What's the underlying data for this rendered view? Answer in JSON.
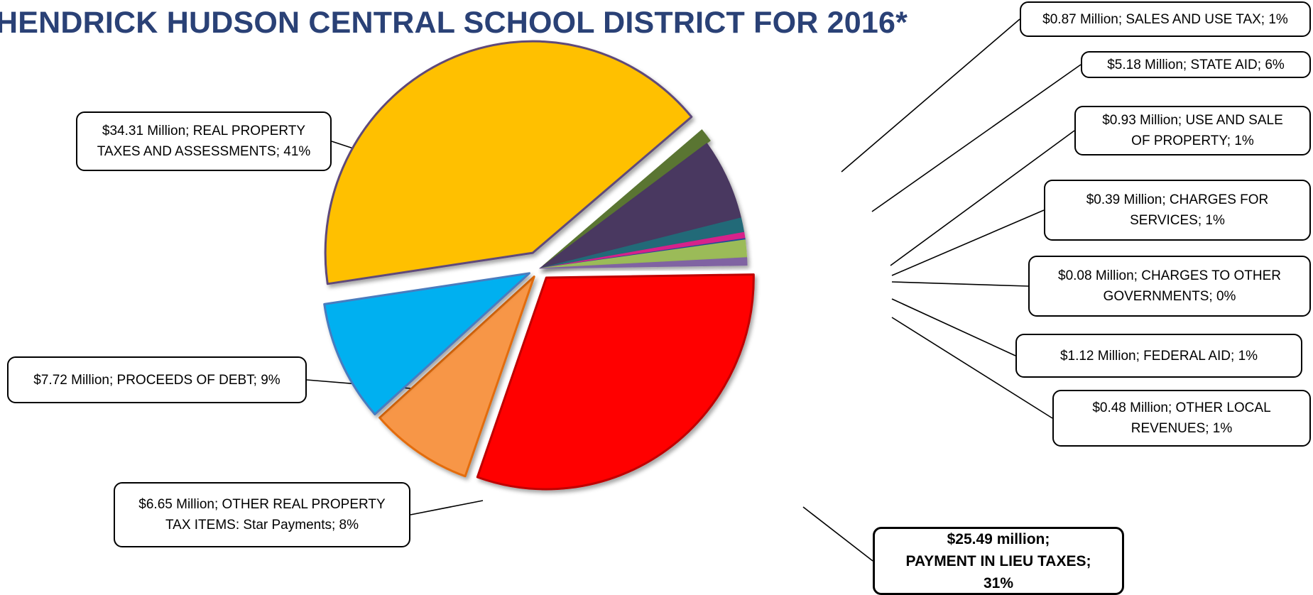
{
  "title": "HENDRICK HUDSON CENTRAL SCHOOL DISTRICT FOR 2016*",
  "chart_data": {
    "type": "pie",
    "title": "HENDRICK HUDSON CENTRAL SCHOOL DISTRICT FOR 2016*",
    "unit": "Million",
    "slices": [
      {
        "key": "sales_tax",
        "name": "SALES AND USE TAX",
        "value": 0.87,
        "percent": 1,
        "label": "$0.87 Million; SALES AND USE TAX; 1%",
        "color": "#5a7531"
      },
      {
        "key": "state_aid",
        "name": "STATE AID",
        "value": 5.18,
        "percent": 6,
        "label": "$5.18 Million; STATE AID; 6%",
        "color": "#4a3760"
      },
      {
        "key": "use_sale_property",
        "name": "USE AND SALE OF PROPERTY",
        "value": 0.93,
        "percent": 1,
        "label": "$0.93 Million; USE AND SALE OF PROPERTY; 1%",
        "color": "#236a78"
      },
      {
        "key": "charges_services",
        "name": "CHARGES FOR SERVICES",
        "value": 0.39,
        "percent": 1,
        "label": "$0.39 Million; CHARGES FOR SERVICES; 1%",
        "color": "#d6208b"
      },
      {
        "key": "charges_other_govts",
        "name": "CHARGES TO OTHER GOVERNMENTS",
        "value": 0.08,
        "percent": 0,
        "label": "$0.08 Million; CHARGES TO OTHER GOVERNMENTS; 0%",
        "color": "#1f4d9a"
      },
      {
        "key": "federal_aid",
        "name": "FEDERAL AID",
        "value": 1.12,
        "percent": 1,
        "label": "$1.12 Million; FEDERAL AID; 1%",
        "color": "#9bbb59"
      },
      {
        "key": "other_local",
        "name": "OTHER LOCAL REVENUES",
        "value": 0.48,
        "percent": 1,
        "label": "$0.48 Million; OTHER LOCAL REVENUES; 1%",
        "color": "#8064a2"
      },
      {
        "key": "pilot",
        "name": "PAYMENT IN LIEU TAXES",
        "value": 25.49,
        "percent": 31,
        "label": "$25.49 million; PAYMENT IN LIEU TAXES; 31%",
        "color": "#ff0000"
      },
      {
        "key": "star",
        "name": "OTHER REAL PROPERTY TAX ITEMS: Star Payments",
        "value": 6.65,
        "percent": 8,
        "label": "$6.65 Million; OTHER REAL PROPERTY TAX ITEMS:  Star Payments; 8%",
        "color": "#f79646"
      },
      {
        "key": "debt",
        "name": "PROCEEDS OF DEBT",
        "value": 7.72,
        "percent": 9,
        "label": "$7.72 Million; PROCEEDS OF DEBT; 9%",
        "color": "#00b0f0"
      },
      {
        "key": "real_property",
        "name": "REAL PROPERTY TAXES AND ASSESSMENTS",
        "value": 34.31,
        "percent": 41,
        "label": "$34.31 Million; REAL PROPERTY TAXES AND ASSESSMENTS; 41%",
        "color": "#ffc000"
      }
    ]
  },
  "callouts": {
    "sales_tax": [
      "$0.87 Million; SALES AND USE TAX; 1%"
    ],
    "state_aid": [
      "$5.18 Million; STATE AID; 6%"
    ],
    "use_sale_property": [
      "$0.93 Million; USE AND SALE",
      "OF PROPERTY; 1%"
    ],
    "charges_services": [
      "$0.39 Million; CHARGES FOR",
      "SERVICES; 1%"
    ],
    "charges_other_govts": [
      "$0.08 Million; CHARGES TO OTHER",
      "GOVERNMENTS; 0%"
    ],
    "federal_aid": [
      "$1.12 Million; FEDERAL AID; 1%"
    ],
    "other_local": [
      "$0.48 Million; OTHER LOCAL",
      "REVENUES; 1%"
    ],
    "pilot": [
      "$25.49 million;",
      "PAYMENT IN LIEU TAXES;",
      "31%"
    ],
    "star": [
      "$6.65 Million; OTHER REAL PROPERTY",
      "TAX ITEMS:  Star Payments; 8%"
    ],
    "debt": [
      "$7.72 Million; PROCEEDS OF DEBT; 9%"
    ],
    "real_property": [
      "$34.31 Million; REAL PROPERTY",
      "TAXES AND ASSESSMENTS; 41%"
    ]
  }
}
